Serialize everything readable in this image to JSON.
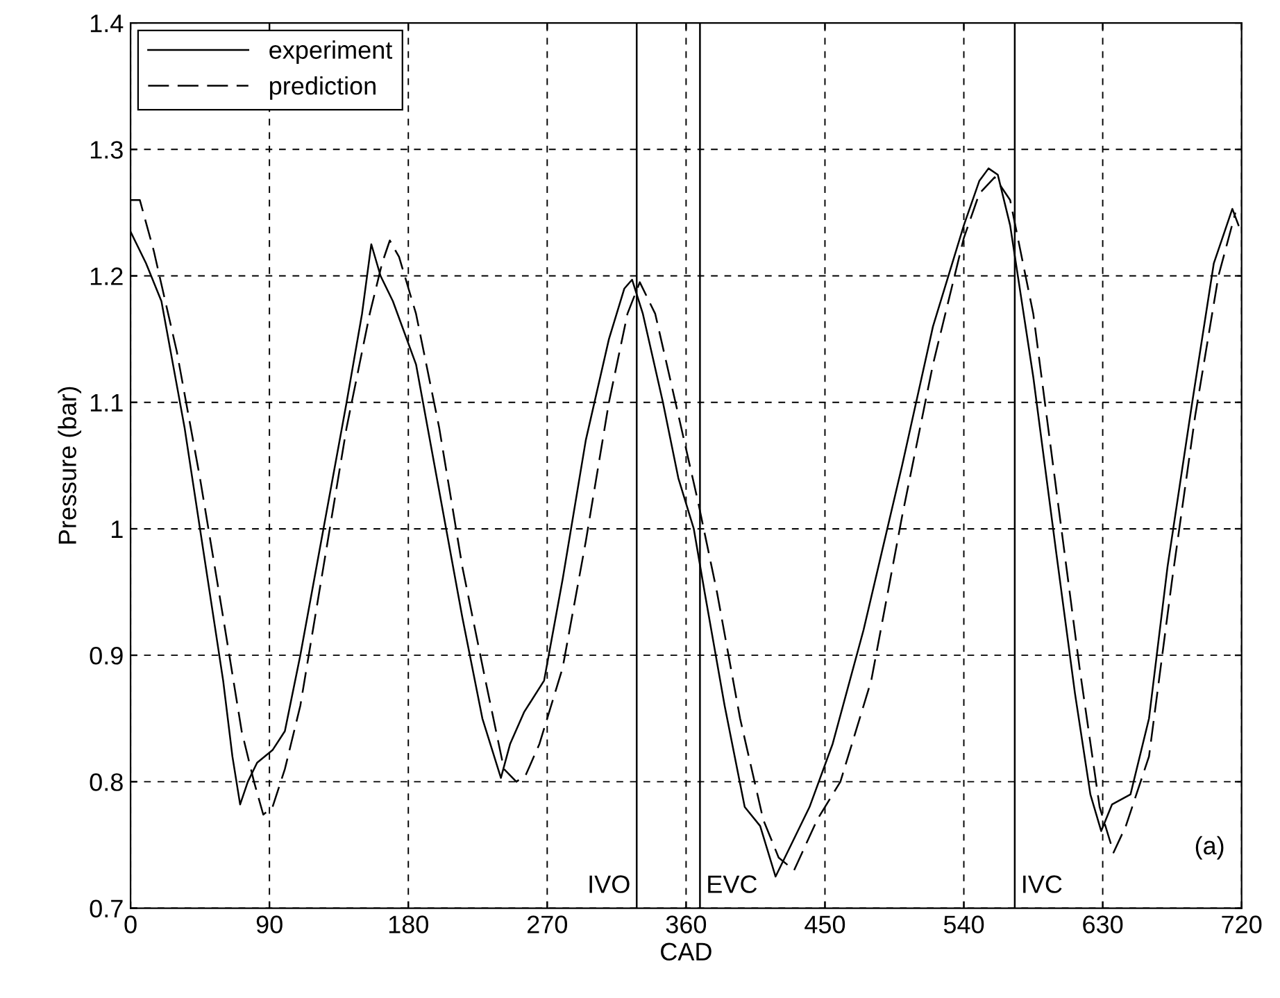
{
  "chart_data": {
    "type": "line",
    "xlabel": "CAD",
    "ylabel": "Pressure (bar)",
    "xlim": [
      0,
      720
    ],
    "xticks": [
      0,
      90,
      180,
      270,
      360,
      450,
      540,
      630,
      720
    ],
    "ylim": [
      0.7,
      1.4
    ],
    "yticks": [
      0.7,
      0.8,
      0.9,
      1,
      1.1,
      1.2,
      1.3,
      1.4
    ],
    "grid": true,
    "legend": "top left",
    "series": [
      {
        "name": "experiment",
        "color": "#000000",
        "line_style": "solid",
        "x": [
          0,
          10,
          20,
          35,
          50,
          60,
          66,
          71,
          76,
          82,
          92,
          100,
          110,
          125,
          140,
          150,
          156,
          162,
          170,
          185,
          200,
          215,
          228,
          240,
          246,
          255,
          268,
          280,
          295,
          310,
          320,
          325,
          332,
          345,
          355,
          365,
          372,
          385,
          398,
          408,
          418,
          428,
          440,
          455,
          475,
          500,
          520,
          540,
          550,
          556,
          562,
          570,
          585,
          600,
          612,
          622,
          629,
          636,
          648,
          660,
          672,
          688,
          702,
          714,
          718
        ],
        "values": [
          1.235,
          1.21,
          1.18,
          1.08,
          0.96,
          0.88,
          0.82,
          0.782,
          0.8,
          0.815,
          0.825,
          0.84,
          0.9,
          1.0,
          1.1,
          1.17,
          1.225,
          1.2,
          1.18,
          1.13,
          1.03,
          0.93,
          0.85,
          0.803,
          0.83,
          0.855,
          0.88,
          0.96,
          1.07,
          1.15,
          1.19,
          1.197,
          1.17,
          1.1,
          1.04,
          1.0,
          0.95,
          0.86,
          0.78,
          0.765,
          0.725,
          0.75,
          0.78,
          0.83,
          0.92,
          1.05,
          1.16,
          1.24,
          1.275,
          1.285,
          1.28,
          1.24,
          1.12,
          0.98,
          0.87,
          0.79,
          0.761,
          0.782,
          0.79,
          0.85,
          0.97,
          1.1,
          1.21,
          1.253,
          1.24
        ]
      },
      {
        "name": "prediction",
        "color": "#000000",
        "line_style": "dashed",
        "x": [
          0,
          6,
          15,
          30,
          45,
          60,
          72,
          80,
          86,
          92,
          100,
          110,
          125,
          140,
          155,
          163,
          168,
          174,
          185,
          200,
          215,
          230,
          242,
          250,
          256,
          265,
          280,
          295,
          310,
          322,
          330,
          340,
          355,
          368,
          380,
          395,
          410,
          420,
          430,
          445,
          460,
          480,
          500,
          520,
          540,
          550,
          560,
          570,
          585,
          600,
          615,
          628,
          637,
          645,
          660,
          675,
          690,
          705,
          716
        ],
        "values": [
          1.26,
          1.26,
          1.22,
          1.14,
          1.04,
          0.93,
          0.84,
          0.8,
          0.774,
          0.78,
          0.81,
          0.86,
          0.97,
          1.08,
          1.17,
          1.21,
          1.228,
          1.215,
          1.17,
          1.08,
          0.97,
          0.88,
          0.81,
          0.8,
          0.805,
          0.83,
          0.89,
          0.99,
          1.1,
          1.17,
          1.195,
          1.17,
          1.09,
          1.02,
          0.95,
          0.85,
          0.77,
          0.74,
          0.73,
          0.77,
          0.8,
          0.88,
          1.01,
          1.13,
          1.23,
          1.265,
          1.278,
          1.26,
          1.17,
          1.03,
          0.89,
          0.78,
          0.744,
          0.765,
          0.82,
          0.96,
          1.09,
          1.2,
          1.25
        ]
      }
    ],
    "ref_lines": [
      {
        "axis": "x",
        "value": 328,
        "label": "IVO",
        "color": "#000000"
      },
      {
        "axis": "x",
        "value": 369,
        "label": "EVC",
        "color": "#000000"
      },
      {
        "axis": "x",
        "value": 573,
        "label": "IVC",
        "color": "#000000"
      }
    ],
    "annotations": [
      "(a)"
    ]
  }
}
